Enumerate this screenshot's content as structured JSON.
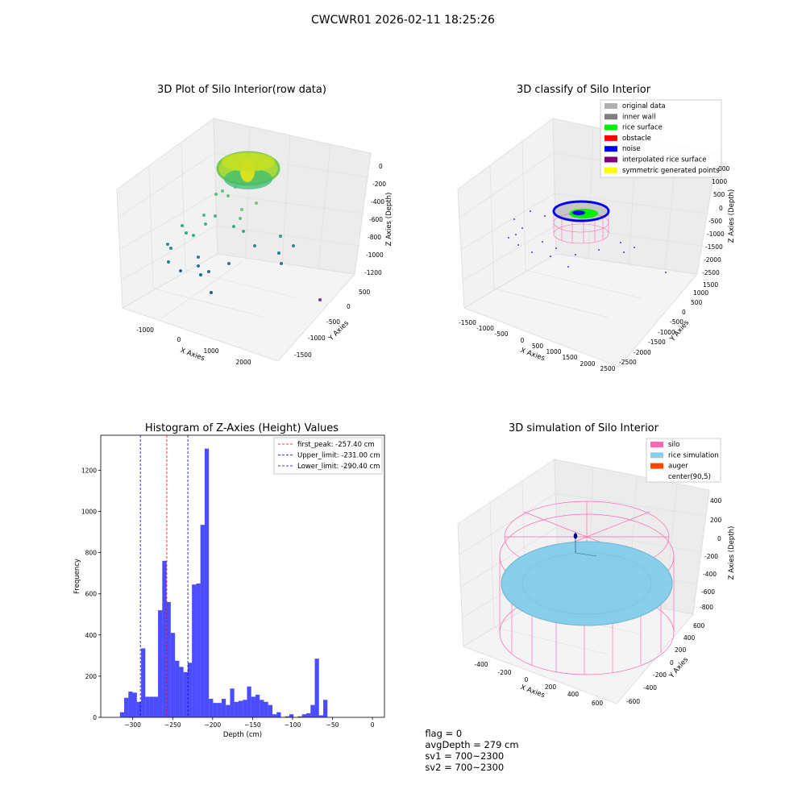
{
  "suptitle": "CWCWR01 2026-02-11 18:25:26",
  "panels": {
    "raw": {
      "title": "3D Plot of Silo Interior(row data)",
      "xlabel": "X Axies",
      "ylabel": "Y Axies",
      "zlabel": "Z Axies (Depth)",
      "xticks": [
        "-1000",
        "0",
        "1000",
        "2000"
      ],
      "yticks": [
        "-1500",
        "-1000",
        "-500",
        "0",
        "500"
      ],
      "zticks": [
        "0",
        "-200",
        "-400",
        "-600",
        "-800",
        "-1000",
        "-1200"
      ]
    },
    "classify": {
      "title": "3D classify of Silo Interior",
      "xlabel": "X Axies",
      "ylabel": "Y Axies",
      "zlabel": "Z Axies (Depth)",
      "xticks": [
        "-1500",
        "-1000",
        "-500",
        "0",
        "500",
        "1000",
        "1500",
        "2000",
        "2500"
      ],
      "yticks": [
        "-2500",
        "-2000",
        "-1500",
        "-1000",
        "-500",
        "0",
        "500",
        "1000",
        "1500"
      ],
      "zticks": [
        "1000",
        "500",
        "0",
        "-500",
        "-1000",
        "-1500",
        "-2000",
        "-2500"
      ],
      "zticks_partial": "000",
      "legend": [
        {
          "label": "original data",
          "color": "#b0b0b0"
        },
        {
          "label": "inner wall",
          "color": "#808080"
        },
        {
          "label": "rice surface",
          "color": "#00ee00"
        },
        {
          "label": "obstacle",
          "color": "#ff0000"
        },
        {
          "label": "noise",
          "color": "#0000ee"
        },
        {
          "label": "interpolated rice surface",
          "color": "#800080"
        },
        {
          "label": "symmetric generated points",
          "color": "#ffff00"
        }
      ]
    },
    "simulation": {
      "title": "3D simulation of Silo Interior",
      "xlabel": "X Axies",
      "ylabel": "Y Axies",
      "zlabel": "Z Axies (Depth)",
      "xticks": [
        "-400",
        "-200",
        "0",
        "200",
        "400",
        "600"
      ],
      "yticks": [
        "-600",
        "-400",
        "-200",
        "0",
        "200",
        "400",
        "600"
      ],
      "zticks": [
        "400",
        "200",
        "0",
        "-200",
        "-400",
        "-600",
        "-800"
      ],
      "legend": [
        {
          "label": "silo",
          "color": "#ff69b4"
        },
        {
          "label": "rice simulation",
          "color": "#87ceeb"
        },
        {
          "label": "auger",
          "color": "#ff4500"
        },
        {
          "label": "center(90,5)",
          "color": ""
        }
      ]
    }
  },
  "chart_data": {
    "type": "bar",
    "title": "Histogram of Z-Axies (Height) Values",
    "xlabel": "Depth (cm)",
    "ylabel": "Frequency",
    "xlim": [
      -340,
      15
    ],
    "ylim": [
      0,
      1370
    ],
    "xticks": [
      -300,
      -250,
      -200,
      -150,
      -100,
      -50,
      0
    ],
    "yticks": [
      0,
      200,
      400,
      600,
      800,
      1000,
      1200
    ],
    "bar_color": "#0000ff",
    "bin_start": -316,
    "bin_width": 5.3,
    "values": [
      25,
      95,
      125,
      120,
      75,
      335,
      100,
      100,
      100,
      520,
      760,
      560,
      410,
      275,
      245,
      220,
      265,
      645,
      650,
      935,
      1305,
      90,
      70,
      70,
      90,
      60,
      140,
      75,
      80,
      85,
      150,
      100,
      110,
      85,
      75,
      60,
      15,
      25,
      0,
      5,
      15,
      0,
      5,
      15,
      20,
      60,
      285,
      10,
      85
    ],
    "vlines": [
      {
        "label": "first_peak: -257.40 cm",
        "x": -257.4,
        "color": "#ff0000"
      },
      {
        "label": "Upper_limit: -231.00 cm",
        "x": -231.0,
        "color": "#0000cc"
      },
      {
        "label": "Lower_limit: -290.40 cm",
        "x": -290.4,
        "color": "#0000cc"
      }
    ]
  },
  "status": {
    "flag": "flag = 0",
    "avg_depth": "avgDepth = 279 cm",
    "sv1": "sv1 = 700~2300",
    "sv2": "sv2 = 700~2300"
  }
}
